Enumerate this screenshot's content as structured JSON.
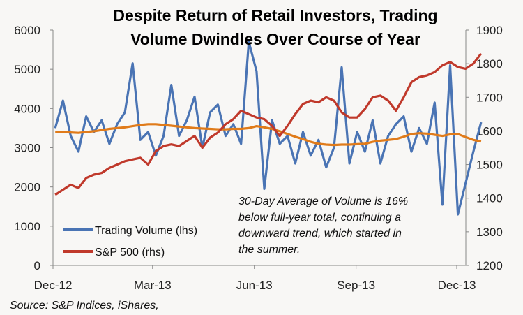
{
  "chart_data": {
    "type": "line",
    "title_lines": [
      "Despite Return of Retail Investors, Trading",
      "Volume Dwindles Over Course of Year"
    ],
    "x": [
      "2012-12-03",
      "2012-12-10",
      "2012-12-17",
      "2012-12-24",
      "2012-12-31",
      "2013-01-07",
      "2013-01-14",
      "2013-01-21",
      "2013-01-28",
      "2013-02-04",
      "2013-02-11",
      "2013-02-18",
      "2013-02-25",
      "2013-03-04",
      "2013-03-11",
      "2013-03-18",
      "2013-03-25",
      "2013-04-01",
      "2013-04-08",
      "2013-04-15",
      "2013-04-22",
      "2013-04-29",
      "2013-05-06",
      "2013-05-13",
      "2013-05-20",
      "2013-05-27",
      "2013-06-03",
      "2013-06-10",
      "2013-06-17",
      "2013-06-24",
      "2013-07-01",
      "2013-07-08",
      "2013-07-15",
      "2013-07-22",
      "2013-07-29",
      "2013-08-05",
      "2013-08-12",
      "2013-08-19",
      "2013-08-26",
      "2013-09-02",
      "2013-09-09",
      "2013-09-16",
      "2013-09-23",
      "2013-09-30",
      "2013-10-07",
      "2013-10-14",
      "2013-10-21",
      "2013-10-28",
      "2013-11-04",
      "2013-11-11",
      "2013-11-18",
      "2013-11-25",
      "2013-12-02",
      "2013-12-09",
      "2013-12-16",
      "2013-12-23"
    ],
    "x_ticks": [
      {
        "date": "2012-12-01",
        "label": "Dec-12"
      },
      {
        "date": "2013-03-01",
        "label": "Mar-13"
      },
      {
        "date": "2013-06-01",
        "label": "Jun-13"
      },
      {
        "date": "2013-09-01",
        "label": "Sep-13"
      },
      {
        "date": "2013-12-01",
        "label": "Dec-13"
      }
    ],
    "y_left": {
      "range": [
        0,
        6000
      ],
      "ticks": [
        "0",
        "1000",
        "2000",
        "3000",
        "4000",
        "5000",
        "6000"
      ]
    },
    "y_right": {
      "range": [
        1200,
        1900
      ],
      "ticks": [
        "1200",
        "1300",
        "1400",
        "1500",
        "1600",
        "1700",
        "1800",
        "1900"
      ]
    },
    "grid": false,
    "legend_position": "bottom-left",
    "series": [
      {
        "name": "Trading Volume (lhs)",
        "axis": "left",
        "color": "#4a74b4",
        "values": [
          3500,
          4200,
          3300,
          2900,
          3800,
          3400,
          3700,
          3100,
          3600,
          3900,
          5150,
          3200,
          3400,
          2800,
          3300,
          4600,
          3300,
          3700,
          4300,
          3000,
          3900,
          4100,
          3300,
          3600,
          3100,
          5700,
          4950,
          1950,
          3700,
          3100,
          3300,
          2600,
          3400,
          2800,
          3200,
          2500,
          3000,
          5050,
          2600,
          3400,
          2900,
          3700,
          2600,
          3300,
          3600,
          3800,
          2900,
          3500,
          3100,
          4150,
          1550,
          5100,
          1300,
          2100,
          2900,
          3650
        ]
      },
      {
        "name": "S&P 500 (rhs)",
        "axis": "right",
        "color": "#c0392b",
        "values": [
          1410,
          1425,
          1440,
          1430,
          1460,
          1470,
          1475,
          1490,
          1500,
          1510,
          1515,
          1520,
          1500,
          1540,
          1555,
          1560,
          1555,
          1570,
          1585,
          1550,
          1580,
          1595,
          1620,
          1635,
          1660,
          1650,
          1640,
          1635,
          1615,
          1585,
          1615,
          1650,
          1680,
          1690,
          1685,
          1700,
          1690,
          1655,
          1640,
          1640,
          1665,
          1700,
          1705,
          1690,
          1660,
          1700,
          1745,
          1760,
          1765,
          1775,
          1795,
          1805,
          1790,
          1785,
          1800,
          1830
        ]
      },
      {
        "axis": "left",
        "color": "#e07b1a",
        "values": [
          3400,
          3400,
          3390,
          3380,
          3400,
          3420,
          3450,
          3480,
          3500,
          3520,
          3550,
          3580,
          3600,
          3600,
          3580,
          3560,
          3540,
          3520,
          3500,
          3490,
          3480,
          3470,
          3470,
          3480,
          3480,
          3500,
          3550,
          3520,
          3480,
          3420,
          3350,
          3280,
          3220,
          3150,
          3100,
          3080,
          3070,
          3080,
          3080,
          3090,
          3100,
          3150,
          3180,
          3200,
          3220,
          3280,
          3350,
          3370,
          3360,
          3330,
          3300,
          3340,
          3350,
          3270,
          3200,
          3160
        ]
      }
    ],
    "annotation_lines": [
      "30-Day Average of Volume is 16%",
      "below full-year total, continuing a",
      "downward trend, which started in",
      "the summer."
    ],
    "source": "Source: S&P Indices, iShares,"
  }
}
